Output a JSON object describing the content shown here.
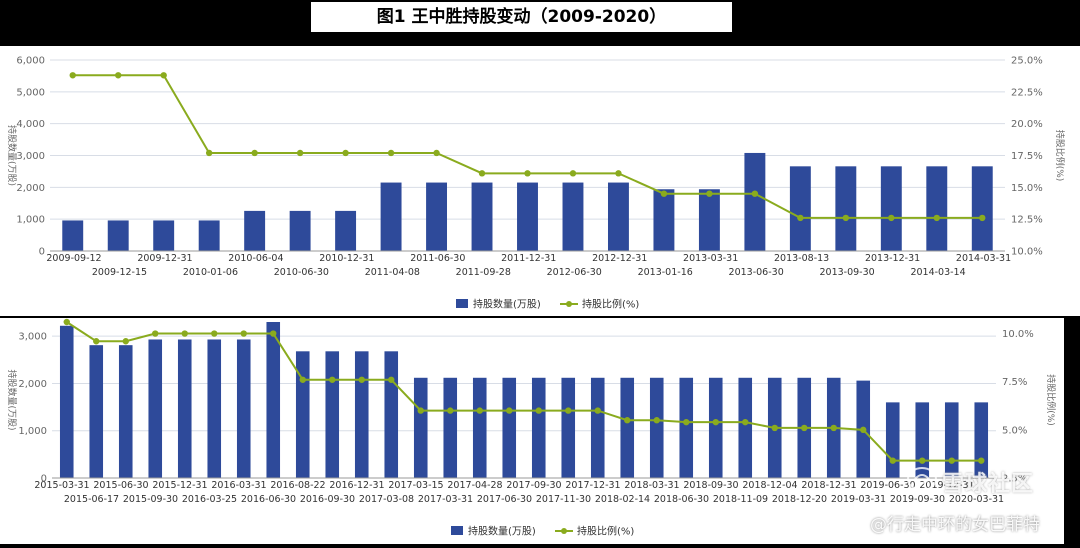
{
  "title": "图1 王中胜持股变动（2009-2020）",
  "watermark": "雪球社区",
  "credit": "@行走中环的女巴菲特",
  "colors": {
    "bar": "#2e4a9a",
    "line": "#8aab1e",
    "grid": "#d8dde6",
    "axis": "#666"
  },
  "chart_data": [
    {
      "type": "bar",
      "ylabel_left": "持股数量(万股)",
      "ylabel_right": "持股比例(%)",
      "legend": [
        "持股数量(万股)",
        "持股比例(%)"
      ],
      "legend_position": "bottom",
      "ylim_left": [
        0,
        6000
      ],
      "yticks_left": [
        "0",
        "1,000",
        "2,000",
        "3,000",
        "4,000",
        "5,000",
        "6,000"
      ],
      "ylim_right": [
        10,
        25
      ],
      "yticks_right": [
        "10.0%",
        "12.5%",
        "15.0%",
        "17.5%",
        "20.0%",
        "22.5%",
        "25.0%"
      ],
      "categories": [
        "2009-09-12",
        "2009-12-15",
        "2009-12-31",
        "2010-01-06",
        "2010-06-04",
        "2010-06-30",
        "2010-12-31",
        "2011-04-08",
        "2011-06-30",
        "2011-09-28",
        "2011-12-31",
        "2012-06-30",
        "2012-12-31",
        "2013-01-16",
        "2013-03-31",
        "2013-06-30",
        "2013-08-13",
        "2013-09-30",
        "2013-12-31",
        "2014-03-14",
        "2014-03-31"
      ],
      "series": [
        {
          "name": "持股数量(万股)",
          "kind": "bar",
          "values": [
            960,
            960,
            960,
            960,
            1260,
            1260,
            1260,
            2150,
            2150,
            2150,
            2150,
            2150,
            2150,
            1940,
            1940,
            3080,
            2660,
            2660,
            2660,
            2660,
            2660
          ]
        },
        {
          "name": "持股比例(%)",
          "kind": "line",
          "values": [
            23.8,
            23.8,
            23.8,
            17.7,
            17.7,
            17.7,
            17.7,
            17.7,
            17.7,
            16.1,
            16.1,
            16.1,
            16.1,
            14.5,
            14.5,
            14.5,
            12.6,
            12.6,
            12.6,
            12.6,
            12.6
          ]
        }
      ]
    },
    {
      "type": "bar",
      "ylabel_left": "持股数量(万股)",
      "ylabel_right": "持股比例(%)",
      "legend": [
        "持股数量(万股)",
        "持股比例(%)"
      ],
      "legend_position": "bottom",
      "ylim_left": [
        0,
        3300
      ],
      "yticks_left": [
        "0",
        "1,000",
        "2,000",
        "3,000"
      ],
      "ytick_values_left": [
        0,
        1000,
        2000,
        3000
      ],
      "ylim_right": [
        2.5,
        10.6
      ],
      "yticks_right": [
        "2.5%",
        "5.0%",
        "7.5%",
        "10.0%"
      ],
      "ytick_values_right": [
        2.5,
        5.0,
        7.5,
        10.0
      ],
      "categories": [
        "2015-03-31",
        "2015-06-17",
        "2015-06-30",
        "2015-09-30",
        "2015-12-31",
        "2016-03-25",
        "2016-03-31",
        "2016-06-30",
        "2016-08-22",
        "2016-09-30",
        "2016-12-31",
        "2017-03-08",
        "2017-03-15",
        "2017-03-31",
        "2017-04-28",
        "2017-06-30",
        "2017-09-30",
        "2017-11-30",
        "2017-12-31",
        "2018-02-14",
        "2018-03-31",
        "2018-06-30",
        "2018-09-30",
        "2018-11-09",
        "2018-12-04",
        "2018-12-20",
        "2018-12-31",
        "2019-03-31",
        "2019-06-30",
        "2019-09-30",
        "2019-12-31",
        "2020-03-31"
      ],
      "series": [
        {
          "name": "持股数量(万股)",
          "kind": "bar",
          "values": [
            3220,
            2810,
            2810,
            2930,
            2930,
            2930,
            2930,
            3300,
            2680,
            2680,
            2680,
            2680,
            2120,
            2120,
            2120,
            2120,
            2120,
            2120,
            2120,
            2120,
            2120,
            2120,
            2120,
            2120,
            2120,
            2120,
            2120,
            2060,
            1600,
            1600,
            1600,
            1600
          ]
        },
        {
          "name": "持股比例(%)",
          "kind": "line",
          "values": [
            10.6,
            9.6,
            9.6,
            10.0,
            10.0,
            10.0,
            10.0,
            10.0,
            7.6,
            7.6,
            7.6,
            7.6,
            6.0,
            6.0,
            6.0,
            6.0,
            6.0,
            6.0,
            6.0,
            5.5,
            5.5,
            5.4,
            5.4,
            5.4,
            5.1,
            5.1,
            5.1,
            5.0,
            3.4,
            3.4,
            3.4,
            3.4
          ]
        }
      ]
    }
  ]
}
